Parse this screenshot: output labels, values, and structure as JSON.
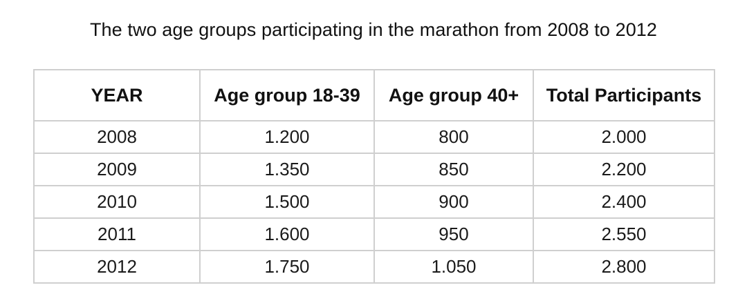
{
  "chart_data": {
    "type": "table",
    "title": "The two age groups participating in the marathon from 2008 to 2012",
    "columns": [
      "YEAR",
      "Age group 18-39",
      "Age group 40+",
      "Total Participants"
    ],
    "rows": [
      [
        "2008",
        "1.200",
        "800",
        "2.000"
      ],
      [
        "2009",
        "1.350",
        "850",
        "2.200"
      ],
      [
        "2010",
        "1.500",
        "900",
        "2.400"
      ],
      [
        "2011",
        "1.600",
        "950",
        "2.550"
      ],
      [
        "2012",
        "1.750",
        "1.050",
        "2.800"
      ]
    ]
  }
}
